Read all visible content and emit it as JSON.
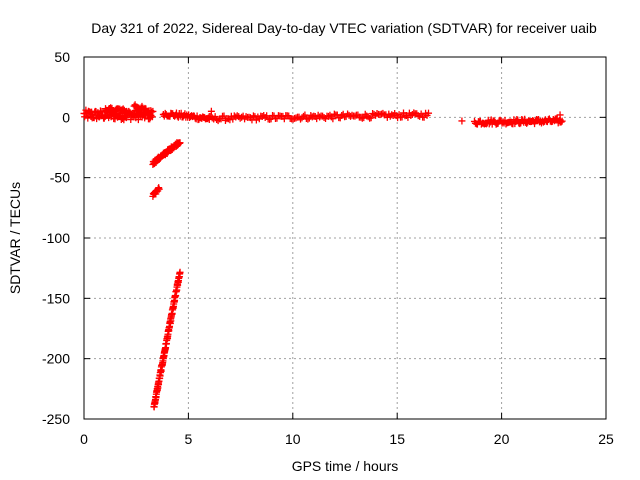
{
  "chart_data": {
    "type": "scatter",
    "title": "Day 321 of 2022, Sidereal Day-to-day VTEC variation (SDTVAR) for receiver uaib",
    "xlabel": "GPS time / hours",
    "ylabel": "SDTVAR / TECUs",
    "xlim": [
      0,
      25
    ],
    "ylim": [
      -250,
      50
    ],
    "x_ticks": [
      0,
      5,
      10,
      15,
      20,
      25
    ],
    "y_ticks": [
      50,
      0,
      -50,
      -100,
      -150,
      -200,
      -250
    ],
    "grid": true,
    "marker": "plus",
    "series": [
      {
        "color": "#ff0000",
        "segments": [
          {
            "x0": 0.0,
            "x1": 3.3,
            "y0": 2,
            "y1": 2,
            "jitter": 4,
            "n": 110
          },
          {
            "x0": 1.0,
            "x1": 1.4,
            "y0": 6,
            "y1": 6,
            "jitter": 2,
            "n": 14
          },
          {
            "x0": 1.5,
            "x1": 2.2,
            "y0": 7,
            "y1": 4,
            "jitter": 2,
            "n": 14
          },
          {
            "x0": 2.4,
            "x1": 3.2,
            "y0": 10,
            "y1": 4,
            "jitter": 2,
            "n": 18
          },
          {
            "x0": 3.8,
            "x1": 6.0,
            "y0": 3,
            "y1": -1,
            "jitter": 2,
            "n": 50
          },
          {
            "x0": 6.0,
            "x1": 16.5,
            "y0": -1,
            "y1": 2,
            "jitter": 2,
            "n": 150
          },
          {
            "x0": 18.7,
            "x1": 22.9,
            "y0": -4,
            "y1": -3,
            "jitter": 2,
            "n": 90
          },
          {
            "x0": 3.3,
            "x1": 4.6,
            "y0": -38,
            "y1": -20,
            "jitter": 1.5,
            "n": 60
          },
          {
            "x0": 3.3,
            "x1": 3.6,
            "y0": -65,
            "y1": -59,
            "jitter": 1.5,
            "n": 14
          },
          {
            "x0": 3.35,
            "x1": 4.6,
            "y0": -240,
            "y1": -128,
            "jitter": 1.5,
            "n": 120
          }
        ],
        "points": [
          {
            "x": 6.1,
            "y": 5
          },
          {
            "x": 18.1,
            "y": -3
          },
          {
            "x": 22.8,
            "y": 2
          },
          {
            "x": 22.8,
            "y": -4
          }
        ]
      }
    ]
  }
}
